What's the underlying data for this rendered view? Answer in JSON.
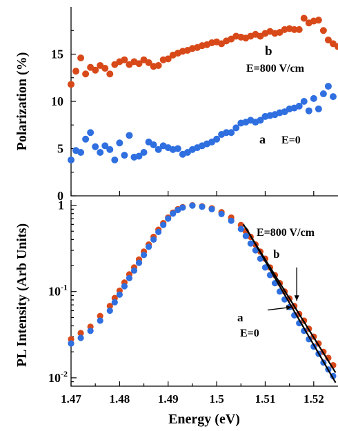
{
  "chart_data": [
    {
      "type": "scatter",
      "panel": "top",
      "ylabel": "Polarization (%)",
      "xlim": [
        1.47,
        1.525
      ],
      "ylim": [
        0,
        20
      ],
      "yticks": [
        0,
        5,
        10,
        15
      ],
      "ytick_labels": [
        "0",
        "5",
        "10",
        "15"
      ],
      "series": [
        {
          "color": "#d8491a",
          "points": [
            [
              1.47,
              11.8
            ],
            [
              1.471,
              13.2
            ],
            [
              1.472,
              14.6
            ],
            [
              1.473,
              12.9
            ],
            [
              1.474,
              13.6
            ],
            [
              1.475,
              13.3
            ],
            [
              1.476,
              13.8
            ],
            [
              1.477,
              13.5
            ],
            [
              1.478,
              12.9
            ],
            [
              1.479,
              13.9
            ],
            [
              1.48,
              14.2
            ],
            [
              1.481,
              14.4
            ],
            [
              1.482,
              13.9
            ],
            [
              1.483,
              14.2
            ],
            [
              1.484,
              14.0
            ],
            [
              1.485,
              14.4
            ],
            [
              1.486,
              14.1
            ],
            [
              1.487,
              13.7
            ],
            [
              1.488,
              13.8
            ],
            [
              1.489,
              14.4
            ],
            [
              1.49,
              14.5
            ],
            [
              1.491,
              14.9
            ],
            [
              1.492,
              15.1
            ],
            [
              1.493,
              15.3
            ],
            [
              1.494,
              15.4
            ],
            [
              1.495,
              15.6
            ],
            [
              1.496,
              15.7
            ],
            [
              1.497,
              15.9
            ],
            [
              1.498,
              16.0
            ],
            [
              1.499,
              16.2
            ],
            [
              1.5,
              16.3
            ],
            [
              1.501,
              16.1
            ],
            [
              1.502,
              16.4
            ],
            [
              1.503,
              16.6
            ],
            [
              1.504,
              16.9
            ],
            [
              1.505,
              16.8
            ],
            [
              1.506,
              16.7
            ],
            [
              1.507,
              16.9
            ],
            [
              1.508,
              17.1
            ],
            [
              1.509,
              16.9
            ],
            [
              1.51,
              17.2
            ],
            [
              1.511,
              17.4
            ],
            [
              1.512,
              17.2
            ],
            [
              1.513,
              17.3
            ],
            [
              1.514,
              17.6
            ],
            [
              1.515,
              17.7
            ],
            [
              1.516,
              17.6
            ],
            [
              1.517,
              17.6
            ],
            [
              1.518,
              18.8
            ],
            [
              1.519,
              18.3
            ],
            [
              1.52,
              18.5
            ],
            [
              1.521,
              18.6
            ],
            [
              1.522,
              17.5
            ],
            [
              1.523,
              16.5
            ],
            [
              1.524,
              16.1
            ],
            [
              1.525,
              15.8
            ]
          ]
        },
        {
          "color": "#2f6fe0",
          "points": [
            [
              1.47,
              3.8
            ],
            [
              1.471,
              4.8
            ],
            [
              1.472,
              4.6
            ],
            [
              1.473,
              6.0
            ],
            [
              1.474,
              6.7
            ],
            [
              1.475,
              5.2
            ],
            [
              1.476,
              4.6
            ],
            [
              1.477,
              5.3
            ],
            [
              1.478,
              4.9
            ],
            [
              1.479,
              3.8
            ],
            [
              1.48,
              5.6
            ],
            [
              1.481,
              4.3
            ],
            [
              1.482,
              6.4
            ],
            [
              1.483,
              4.1
            ],
            [
              1.484,
              4.2
            ],
            [
              1.485,
              4.6
            ],
            [
              1.486,
              5.7
            ],
            [
              1.487,
              5.4
            ],
            [
              1.488,
              4.9
            ],
            [
              1.489,
              5.3
            ],
            [
              1.49,
              5.1
            ],
            [
              1.491,
              4.9
            ],
            [
              1.492,
              5.0
            ],
            [
              1.493,
              4.4
            ],
            [
              1.494,
              4.6
            ],
            [
              1.495,
              4.9
            ],
            [
              1.496,
              5.1
            ],
            [
              1.497,
              5.3
            ],
            [
              1.498,
              5.5
            ],
            [
              1.499,
              5.7
            ],
            [
              1.5,
              6.0
            ],
            [
              1.501,
              6.5
            ],
            [
              1.502,
              6.7
            ],
            [
              1.503,
              6.7
            ],
            [
              1.504,
              7.2
            ],
            [
              1.505,
              7.7
            ],
            [
              1.506,
              7.8
            ],
            [
              1.507,
              8.0
            ],
            [
              1.508,
              7.8
            ],
            [
              1.509,
              8.0
            ],
            [
              1.51,
              8.4
            ],
            [
              1.511,
              8.5
            ],
            [
              1.512,
              8.6
            ],
            [
              1.513,
              8.8
            ],
            [
              1.514,
              8.9
            ],
            [
              1.515,
              9.2
            ],
            [
              1.516,
              9.3
            ],
            [
              1.517,
              9.5
            ],
            [
              1.518,
              10.0
            ],
            [
              1.519,
              9.0
            ],
            [
              1.52,
              10.3
            ],
            [
              1.521,
              9.2
            ],
            [
              1.522,
              10.8
            ],
            [
              1.523,
              11.6
            ],
            [
              1.524,
              10.5
            ]
          ]
        }
      ],
      "annotations": {
        "b_label": "b",
        "b_field": "E=800 V/cm",
        "a_label": "a",
        "a_field": "E=0"
      }
    },
    {
      "type": "scatter",
      "panel": "bottom",
      "yscale": "log",
      "xlabel": "Energy (eV)",
      "ylabel": "PL Intensity (Arb Units)",
      "xlim": [
        1.47,
        1.525
      ],
      "ylim": [
        0.008,
        1.15
      ],
      "xticks": [
        1.47,
        1.48,
        1.49,
        1.5,
        1.51,
        1.52
      ],
      "xtick_labels": [
        "1.47",
        "1.48",
        "1.49",
        "1.5",
        "1.51",
        "1.52"
      ],
      "yticks": [
        0.01,
        0.1,
        1
      ],
      "series": [
        {
          "color": "#d8491a",
          "points": [
            [
              1.47,
              0.028
            ],
            [
              1.472,
              0.033
            ],
            [
              1.474,
              0.039
            ],
            [
              1.476,
              0.052
            ],
            [
              1.478,
              0.068
            ],
            [
              1.479,
              0.084
            ],
            [
              1.48,
              0.102
            ],
            [
              1.481,
              0.127
            ],
            [
              1.482,
              0.158
            ],
            [
              1.483,
              0.19
            ],
            [
              1.484,
              0.235
            ],
            [
              1.485,
              0.29
            ],
            [
              1.486,
              0.35
            ],
            [
              1.487,
              0.43
            ],
            [
              1.488,
              0.52
            ],
            [
              1.489,
              0.62
            ],
            [
              1.49,
              0.72
            ],
            [
              1.491,
              0.82
            ],
            [
              1.492,
              0.9
            ],
            [
              1.493,
              0.95
            ],
            [
              1.495,
              1.0
            ],
            [
              1.497,
              0.97
            ],
            [
              1.499,
              0.92
            ],
            [
              1.501,
              0.83
            ],
            [
              1.503,
              0.72
            ],
            [
              1.505,
              0.59
            ],
            [
              1.506,
              0.5
            ],
            [
              1.507,
              0.43
            ],
            [
              1.508,
              0.35
            ],
            [
              1.509,
              0.29
            ],
            [
              1.51,
              0.24
            ],
            [
              1.511,
              0.19
            ],
            [
              1.512,
              0.155
            ],
            [
              1.513,
              0.125
            ],
            [
              1.514,
              0.1
            ],
            [
              1.515,
              0.083
            ],
            [
              1.516,
              0.068
            ],
            [
              1.517,
              0.055
            ],
            [
              1.518,
              0.046
            ],
            [
              1.519,
              0.037
            ],
            [
              1.52,
              0.03
            ],
            [
              1.521,
              0.025
            ],
            [
              1.522,
              0.02
            ],
            [
              1.523,
              0.017
            ],
            [
              1.524,
              0.014
            ]
          ]
        },
        {
          "color": "#2f6fe0",
          "points": [
            [
              1.47,
              0.025
            ],
            [
              1.472,
              0.029
            ],
            [
              1.474,
              0.035
            ],
            [
              1.476,
              0.046
            ],
            [
              1.478,
              0.06
            ],
            [
              1.479,
              0.075
            ],
            [
              1.48,
              0.092
            ],
            [
              1.481,
              0.115
            ],
            [
              1.482,
              0.143
            ],
            [
              1.483,
              0.175
            ],
            [
              1.484,
              0.215
            ],
            [
              1.485,
              0.265
            ],
            [
              1.486,
              0.33
            ],
            [
              1.487,
              0.4
            ],
            [
              1.488,
              0.49
            ],
            [
              1.489,
              0.59
            ],
            [
              1.49,
              0.7
            ],
            [
              1.491,
              0.8
            ],
            [
              1.492,
              0.88
            ],
            [
              1.493,
              0.94
            ],
            [
              1.495,
              0.99
            ],
            [
              1.497,
              0.96
            ],
            [
              1.499,
              0.9
            ],
            [
              1.501,
              0.79
            ],
            [
              1.503,
              0.66
            ],
            [
              1.505,
              0.53
            ],
            [
              1.506,
              0.44
            ],
            [
              1.507,
              0.36
            ],
            [
              1.508,
              0.3
            ],
            [
              1.509,
              0.24
            ],
            [
              1.51,
              0.19
            ],
            [
              1.511,
              0.155
            ],
            [
              1.512,
              0.125
            ],
            [
              1.513,
              0.1
            ],
            [
              1.514,
              0.081
            ],
            [
              1.515,
              0.066
            ],
            [
              1.516,
              0.053
            ],
            [
              1.517,
              0.043
            ],
            [
              1.518,
              0.035
            ],
            [
              1.519,
              0.028
            ],
            [
              1.52,
              0.023
            ],
            [
              1.521,
              0.019
            ],
            [
              1.522,
              0.015
            ],
            [
              1.523,
              0.0125
            ],
            [
              1.524,
              0.0105
            ]
          ]
        }
      ],
      "fit_lines": [
        {
          "from": [
            1.5055,
            0.6
          ],
          "to": [
            1.5245,
            0.0115
          ]
        },
        {
          "from": [
            1.506,
            0.55
          ],
          "to": [
            1.5245,
            0.0088
          ]
        }
      ],
      "annotations": {
        "b_field": "E=800 V/cm",
        "b_label": "b",
        "a_label": "a",
        "a_field": "E=0",
        "b_arrow": {
          "from": [
            1.5165,
            0.19
          ],
          "to": [
            1.5165,
            0.078
          ]
        },
        "a_arrow": {
          "from": [
            1.5105,
            0.061
          ],
          "to": [
            1.5155,
            0.066
          ]
        }
      }
    }
  ]
}
